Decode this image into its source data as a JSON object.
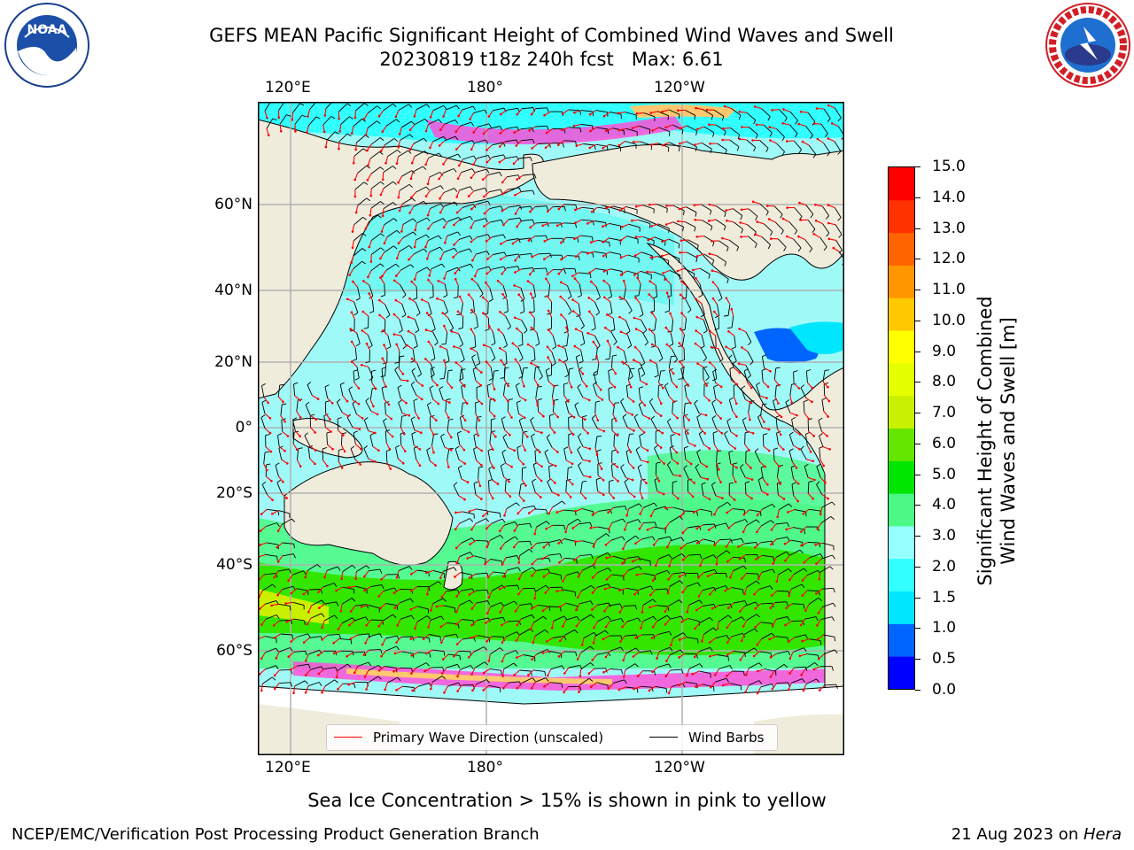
{
  "title": {
    "line1": "GEFS MEAN Pacific Significant Height of Combined Wind Waves and Swell",
    "line2": "20230819 t18z 240h fcst   Max: 6.61"
  },
  "logos": {
    "left": "noaa-logo",
    "right": "national-weather-service-logo"
  },
  "map": {
    "top_axis_labels": [
      "120°E",
      "180°",
      "120°W"
    ],
    "bottom_axis_labels": [
      "120°E",
      "180°",
      "120°W"
    ],
    "lat_labels": [
      "60°N",
      "40°N",
      "20°N",
      "0°",
      "20°S",
      "40°S",
      "60°S"
    ],
    "colors": {
      "land": "#efecdc",
      "ocean_low": "#9ff9f7",
      "ocean_mid": "#4cf987",
      "ocean_high": "#32e600",
      "grid": "#b0b0b0"
    }
  },
  "legend": {
    "primary_wave_label": "Primary Wave Direction (unscaled)",
    "primary_wave_color": "#ff0000",
    "wind_barbs_label": "Wind Barbs",
    "wind_barbs_color": "#000000"
  },
  "colorbar": {
    "label_line1": "Significant Height of Combined",
    "label_line2": "Wind Waves and Swell [m]",
    "ticks": [
      "15.0",
      "14.0",
      "13.0",
      "12.0",
      "11.0",
      "10.0",
      "9.0",
      "8.0",
      "7.0",
      "6.0",
      "5.0",
      "4.0",
      "3.0",
      "2.0",
      "1.5",
      "1.0",
      "0.5",
      "0.0"
    ],
    "colors_bottom_to_top": [
      "#0000ff",
      "#0064ff",
      "#00e6ff",
      "#32ffff",
      "#96ffff",
      "#4cf987",
      "#00e600",
      "#64e600",
      "#c8f000",
      "#e6ff00",
      "#ffff00",
      "#ffc800",
      "#ff9600",
      "#ff6400",
      "#ff3200",
      "#ff0000"
    ]
  },
  "sea_ice_note": "Sea Ice Concentration > 15% is shown in pink to yellow",
  "footer": {
    "left": "NCEP/EMC/Verification Post Processing Product Generation Branch",
    "right_date": "21 Aug 2023 on ",
    "right_host": "Hera"
  }
}
